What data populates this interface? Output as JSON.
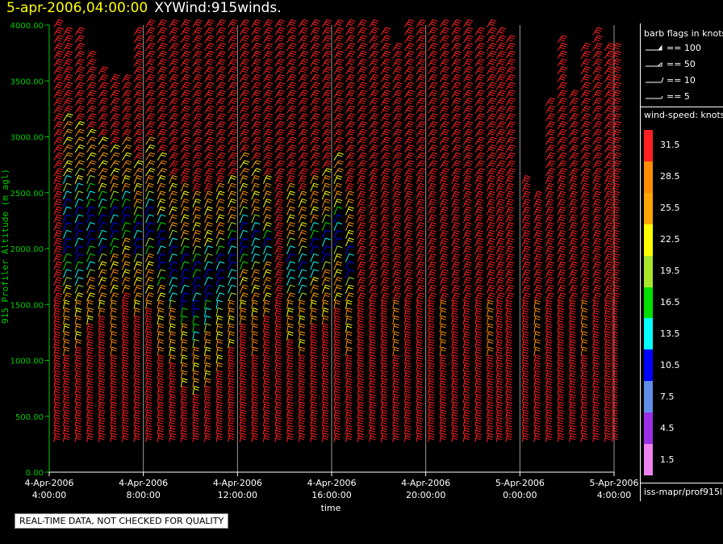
{
  "title": {
    "date": "5-apr-2006,04:00:00",
    "name": "XYWind:915winds."
  },
  "qc_note": "REAL-TIME DATA, NOT CHECKED FOR QUALITY",
  "panel": {
    "flags_heading": "barb flags in knots",
    "flags": [
      {
        "label": "== 100",
        "kind": "filled"
      },
      {
        "label": "== 50",
        "kind": "triangle"
      },
      {
        "label": "== 10",
        "kind": "full"
      },
      {
        "label": "== 5",
        "kind": "half"
      }
    ],
    "colorbar_heading": "wind-speed: knots",
    "colorbar": [
      {
        "label": "31.5",
        "color": "#ff2020"
      },
      {
        "label": "28.5",
        "color": "#ff8c00"
      },
      {
        "label": "25.5",
        "color": "#ffa500"
      },
      {
        "label": "22.5",
        "color": "#ffff00"
      },
      {
        "label": "19.5",
        "color": "#a8e62a"
      },
      {
        "label": "16.5",
        "color": "#00e000"
      },
      {
        "label": "13.5",
        "color": "#00ffff"
      },
      {
        "label": "10.5",
        "color": "#0000ff"
      },
      {
        "label": "7.5",
        "color": "#5f8fe8"
      },
      {
        "label": "4.5",
        "color": "#9a30e6"
      },
      {
        "label": "1.5",
        "color": "#ee82ee"
      }
    ],
    "source": "iss-mapr/prof915l"
  },
  "chart_data": {
    "type": "scatter",
    "subtype": "wind-barbs",
    "ylabel": "915 Profiler Altitude (m agl)",
    "xlabel": "time",
    "ylim": [
      0,
      4000
    ],
    "yticks": [
      "0.00",
      "500.00",
      "1000.00",
      "1500.00",
      "2000.00",
      "2500.00",
      "3000.00",
      "3500.00",
      "4000.00"
    ],
    "xlim_hours": [
      0,
      24
    ],
    "xticks": [
      {
        "hour": 0,
        "line1": "4-Apr-2006",
        "line2": "4:00:00"
      },
      {
        "hour": 4,
        "line1": "4-Apr-2006",
        "line2": "8:00:00"
      },
      {
        "hour": 8,
        "line1": "4-Apr-2006",
        "line2": "12:00:00"
      },
      {
        "hour": 12,
        "line1": "4-Apr-2006",
        "line2": "16:00:00"
      },
      {
        "hour": 16,
        "line1": "4-Apr-2006",
        "line2": "20:00:00"
      },
      {
        "hour": 20,
        "line1": "5-Apr-2006",
        "line2": "0:00:00"
      },
      {
        "hour": 24,
        "line1": "5-Apr-2006",
        "line2": "4:00:00"
      }
    ],
    "grid": "vertical",
    "barb_altitudes_m": [
      270,
      340,
      410,
      480,
      550,
      620,
      690,
      760,
      830,
      900,
      970,
      1040,
      1110,
      1180,
      1250,
      1320,
      1390,
      1460,
      1530,
      1600,
      1670,
      1740,
      1810,
      1880,
      1950,
      2020,
      2090,
      2160,
      2230,
      2300,
      2370,
      2440,
      2510,
      2580,
      2650,
      2720,
      2790,
      2860,
      2930,
      3000,
      3070,
      3140,
      3210,
      3280,
      3350,
      3420,
      3490,
      3560,
      3630,
      3700,
      3770,
      3840,
      3910,
      3980
    ],
    "profiles": [
      {
        "time_h": 0.2,
        "top_m": 4000,
        "slow": [
          0,
          0
        ]
      },
      {
        "time_h": 0.6,
        "top_m": 3950,
        "slow": [
          1600,
          2700
        ]
      },
      {
        "time_h": 1.1,
        "top_m": 3950,
        "slow": [
          1500,
          2650
        ]
      },
      {
        "time_h": 1.6,
        "top_m": 3700,
        "slow": [
          1700,
          2600
        ]
      },
      {
        "time_h": 2.1,
        "top_m": 3600,
        "slow": [
          1800,
          2500
        ]
      },
      {
        "time_h": 2.6,
        "top_m": 3550,
        "slow": [
          1900,
          2450
        ]
      },
      {
        "time_h": 3.1,
        "top_m": 3550,
        "slow": [
          2000,
          2500
        ]
      },
      {
        "time_h": 3.6,
        "top_m": 3950,
        "slow": [
          1800,
          2300
        ]
      },
      {
        "time_h": 4.1,
        "top_m": 4000,
        "slow": [
          1900,
          2500
        ]
      },
      {
        "time_h": 4.6,
        "top_m": 4000,
        "slow": [
          1600,
          2350
        ]
      },
      {
        "time_h": 5.1,
        "top_m": 4000,
        "slow": [
          1400,
          2200
        ]
      },
      {
        "time_h": 5.6,
        "top_m": 4000,
        "slow": [
          1200,
          2100
        ]
      },
      {
        "time_h": 6.1,
        "top_m": 4000,
        "slow": [
          1100,
          2000
        ]
      },
      {
        "time_h": 6.6,
        "top_m": 4000,
        "slow": [
          1200,
          2050
        ]
      },
      {
        "time_h": 7.1,
        "top_m": 4000,
        "slow": [
          1300,
          2100
        ]
      },
      {
        "time_h": 7.6,
        "top_m": 4000,
        "slow": [
          1500,
          2200
        ]
      },
      {
        "time_h": 8.1,
        "top_m": 4000,
        "slow": [
          1700,
          2400
        ]
      },
      {
        "time_h": 8.6,
        "top_m": 4000,
        "slow": [
          1800,
          2300
        ]
      },
      {
        "time_h": 9.1,
        "top_m": 4000,
        "slow": [
          1800,
          2150
        ]
      },
      {
        "time_h": 9.6,
        "top_m": 4000,
        "slow": [
          0,
          0
        ]
      },
      {
        "time_h": 10.1,
        "top_m": 4000,
        "slow": [
          1600,
          2100
        ]
      },
      {
        "time_h": 10.6,
        "top_m": 4000,
        "slow": [
          1500,
          2050
        ]
      },
      {
        "time_h": 11.1,
        "top_m": 4000,
        "slow": [
          1700,
          2200
        ]
      },
      {
        "time_h": 11.6,
        "top_m": 4000,
        "slow": [
          1750,
          2250
        ]
      },
      {
        "time_h": 12.1,
        "top_m": 4000,
        "slow": [
          1850,
          2350
        ]
      },
      {
        "time_h": 12.6,
        "top_m": 4000,
        "slow": [
          1600,
          2050
        ]
      },
      {
        "time_h": 13.1,
        "top_m": 4000,
        "slow": [
          0,
          0
        ]
      },
      {
        "time_h": 13.6,
        "top_m": 4000,
        "slow": [
          0,
          0
        ]
      },
      {
        "time_h": 14.1,
        "top_m": 3950,
        "slow": [
          0,
          0
        ]
      },
      {
        "time_h": 14.6,
        "top_m": 3800,
        "slow": [
          0,
          0
        ]
      },
      {
        "time_h": 15.1,
        "top_m": 4000,
        "slow": [
          0,
          0
        ]
      },
      {
        "time_h": 15.6,
        "top_m": 4000,
        "slow": [
          0,
          0
        ]
      },
      {
        "time_h": 16.1,
        "top_m": 4000,
        "slow": [
          0,
          0
        ]
      },
      {
        "time_h": 16.6,
        "top_m": 4000,
        "slow": [
          0,
          0
        ]
      },
      {
        "time_h": 17.1,
        "top_m": 4000,
        "slow": [
          0,
          0
        ]
      },
      {
        "time_h": 17.6,
        "top_m": 4000,
        "slow": [
          0,
          0
        ]
      },
      {
        "time_h": 18.1,
        "top_m": 3950,
        "slow": [
          0,
          0
        ]
      },
      {
        "time_h": 18.6,
        "top_m": 4000,
        "slow": [
          0,
          0
        ]
      },
      {
        "time_h": 19.0,
        "top_m": 3950,
        "slow": [
          0,
          0
        ]
      },
      {
        "time_h": 19.4,
        "top_m": 3900,
        "slow": [
          0,
          0
        ]
      },
      {
        "time_h": 20.1,
        "top_m": 2600,
        "slow": [
          0,
          0
        ]
      },
      {
        "time_h": 20.6,
        "top_m": 2450,
        "slow": [
          0,
          0
        ]
      },
      {
        "time_h": 21.1,
        "top_m": 3300,
        "slow": [
          0,
          0
        ]
      },
      {
        "time_h": 21.6,
        "top_m": 3900,
        "slow": [
          0,
          0
        ]
      },
      {
        "time_h": 22.1,
        "top_m": 3400,
        "slow": [
          0,
          0
        ]
      },
      {
        "time_h": 22.6,
        "top_m": 3800,
        "slow": [
          0,
          0
        ]
      },
      {
        "time_h": 23.1,
        "top_m": 3950,
        "slow": [
          0,
          0
        ]
      },
      {
        "time_h": 23.6,
        "top_m": 3800,
        "slow": [
          0,
          0
        ]
      },
      {
        "time_h": 23.9,
        "top_m": 3800,
        "slow": [
          0,
          0
        ]
      }
    ]
  }
}
